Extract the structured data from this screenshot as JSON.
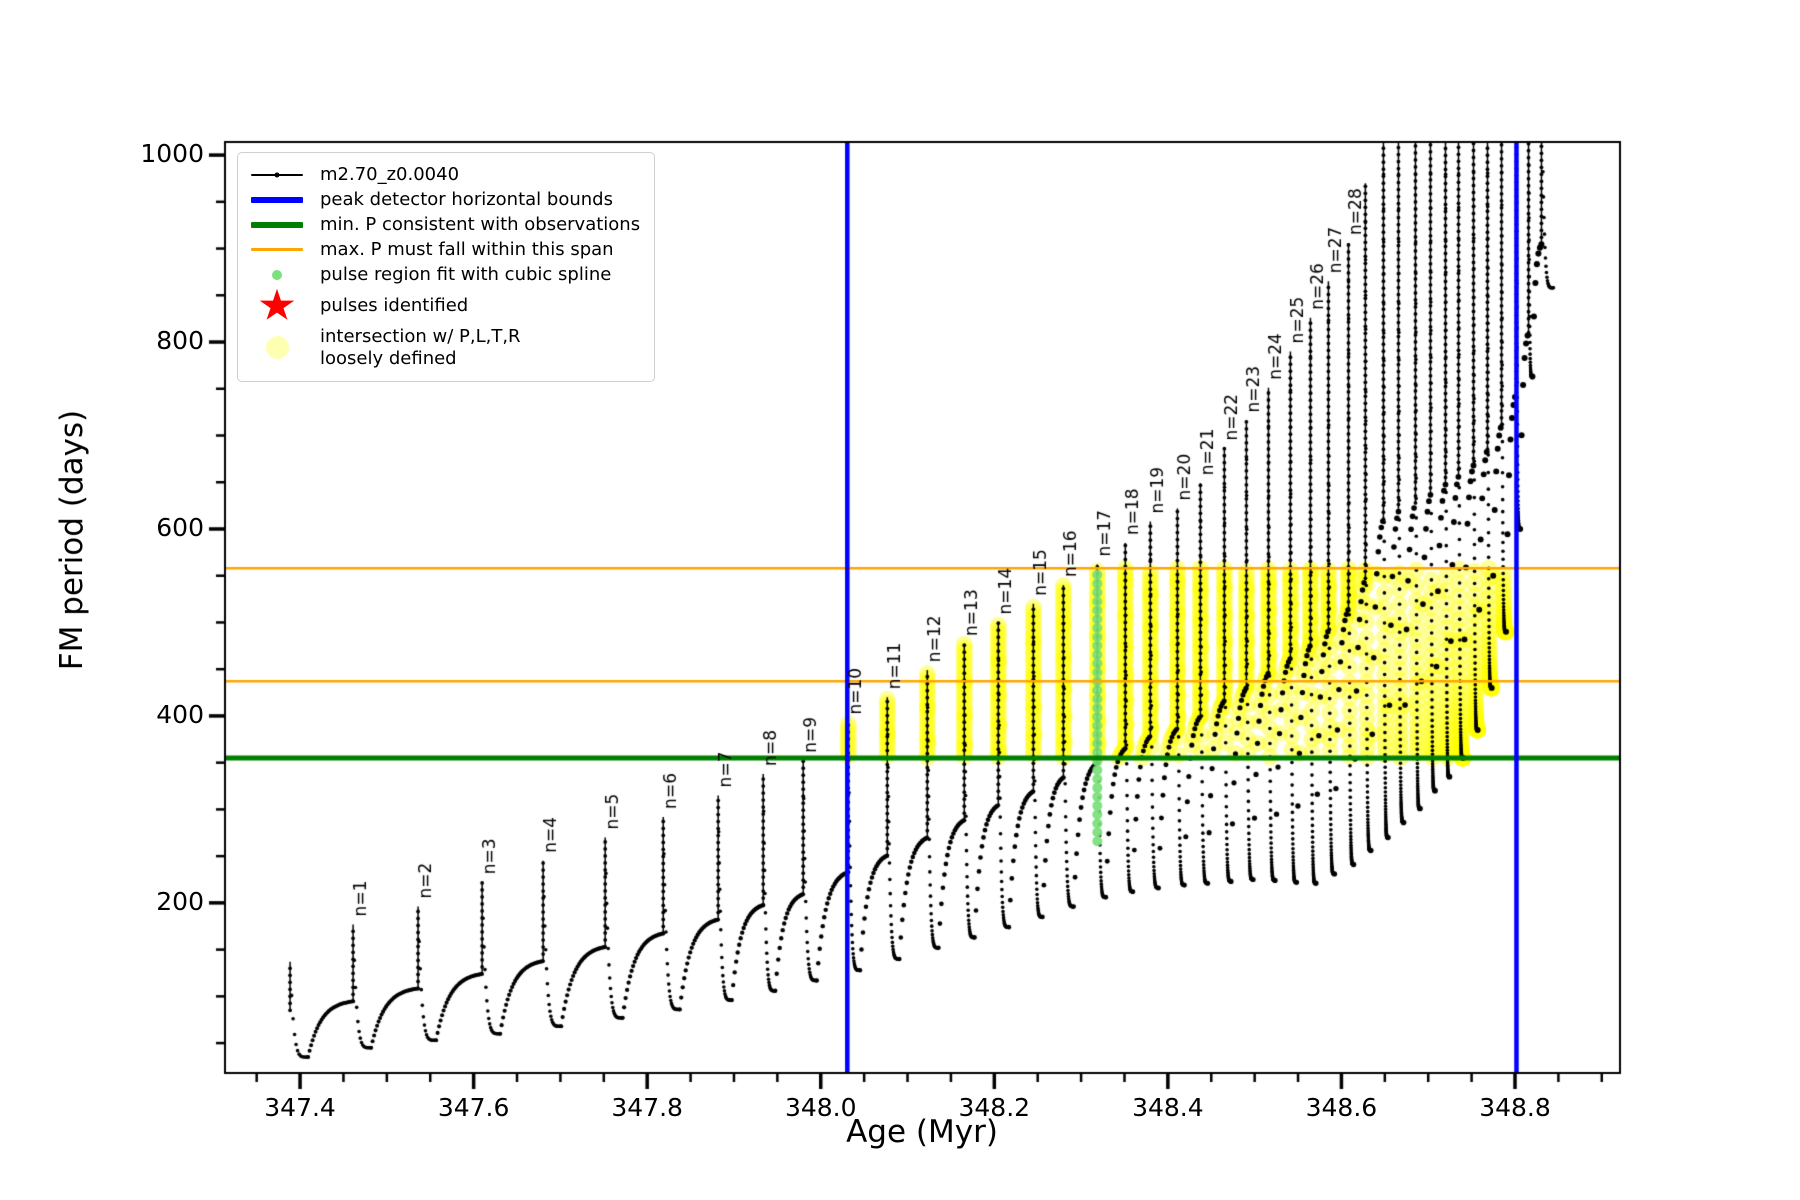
{
  "legend": {
    "entries": [
      {
        "marker": "line-dot",
        "color": "#000000",
        "label": "m2.70_z0.0040"
      },
      {
        "marker": "hline-thick",
        "color": "#0000ff",
        "label": "peak detector horizontal bounds"
      },
      {
        "marker": "hline-thick",
        "color": "#008000",
        "label": "min. P consistent with observations"
      },
      {
        "marker": "hline-thin",
        "color": "#ffa500",
        "label": "max. P must fall within this span"
      },
      {
        "marker": "dot-small",
        "color": "#7ce07c",
        "label": "pulse region fit with cubic spline"
      },
      {
        "marker": "star",
        "color": "#ff0000",
        "label": "pulses identified"
      },
      {
        "marker": "dot-large",
        "color": "rgba(255,255,0,0.30)",
        "label": "intersection w/ P,L,T,R\nloosely defined"
      }
    ]
  },
  "chart_data": {
    "type": "line",
    "title": "",
    "xlabel": "Age (Myr)",
    "ylabel": "FM period (days)",
    "series": [
      {
        "name": "m2.70_z0.0040",
        "color": "#000000"
      }
    ],
    "x_range": [
      347.3135,
      348.921
    ],
    "y_range": [
      18,
      1014
    ],
    "x_major_ticks": [
      347.4,
      347.6,
      347.8,
      348.0,
      348.2,
      348.4,
      348.6,
      348.8
    ],
    "x_tick_labels": [
      "347.4",
      "347.6",
      "347.8",
      "348.0",
      "348.2",
      "348.4",
      "348.6",
      "348.8"
    ],
    "x_minor_step": 0.05,
    "y_major_ticks": [
      200,
      400,
      600,
      800,
      1000
    ],
    "y_tick_labels": [
      "200",
      "400",
      "600",
      "800",
      "1000"
    ],
    "y_minor_step": 50,
    "grid": false,
    "legend_position": "upper left",
    "vlines": {
      "label": "peak detector horizontal bounds",
      "color": "#0000ff",
      "x": [
        348.0306,
        348.8017
      ]
    },
    "hline_min_p": {
      "label": "min. P consistent with observations",
      "color": "#008000",
      "y": 355
    },
    "hlines_max_p_span": {
      "label": "max. P must fall within this span",
      "color": "#ffa500",
      "y": [
        437,
        558
      ]
    },
    "spline_fit_column": {
      "label": "pulse region fit with cubic spline",
      "color": "rgba(120,224,120,0.92)",
      "x": 348.3187,
      "y_min": 266,
      "y_max": 560,
      "step": 9.5
    },
    "intersection_band": {
      "label": "intersection w/ P,L,T,R loosely defined",
      "color": "rgba(255,255,0,0.40)",
      "x_min": 348.0306,
      "x_max": 348.8017,
      "y_min": 355,
      "y_max": 558
    },
    "pulses": {
      "first_shoulder": 85,
      "shoulder_frac": 0.42,
      "clip_top": 1100,
      "spikes": [
        {
          "x": 347.3885,
          "peak": 137,
          "dip_after": 35,
          "label": null
        },
        {
          "x": 347.4611,
          "peak": 177,
          "dip_after": 45,
          "label": "n=1"
        },
        {
          "x": 347.536,
          "peak": 196,
          "dip_after": 53,
          "label": "n=2"
        },
        {
          "x": 347.6098,
          "peak": 222,
          "dip_after": 60,
          "label": "n=3"
        },
        {
          "x": 347.6801,
          "peak": 245,
          "dip_after": 68,
          "label": "n=4"
        },
        {
          "x": 347.7516,
          "peak": 270,
          "dip_after": 77,
          "label": "n=5"
        },
        {
          "x": 347.8185,
          "peak": 292,
          "dip_after": 86,
          "label": "n=6"
        },
        {
          "x": 347.8818,
          "peak": 315,
          "dip_after": 96,
          "label": "n=7"
        },
        {
          "x": 347.9337,
          "peak": 338,
          "dip_after": 106,
          "label": "n=8"
        },
        {
          "x": 347.9798,
          "peak": 352,
          "dip_after": 117,
          "label": "n=9"
        },
        {
          "x": 348.0317,
          "peak": 393,
          "dip_after": 128,
          "label": "n=10"
        },
        {
          "x": 348.0767,
          "peak": 420,
          "dip_after": 140,
          "label": "n=11"
        },
        {
          "x": 348.1228,
          "peak": 449,
          "dip_after": 152,
          "label": "n=12"
        },
        {
          "x": 348.1654,
          "peak": 477,
          "dip_after": 163,
          "label": "n=13"
        },
        {
          "x": 348.2046,
          "peak": 500,
          "dip_after": 174,
          "label": "n=14"
        },
        {
          "x": 348.245,
          "peak": 520,
          "dip_after": 185,
          "label": "n=15"
        },
        {
          "x": 348.2796,
          "peak": 540,
          "dip_after": 196,
          "label": "n=16"
        },
        {
          "x": 348.3187,
          "peak": 562,
          "dip_after": 206,
          "label": "n=17"
        },
        {
          "x": 348.351,
          "peak": 585,
          "dip_after": 212,
          "label": "n=18"
        },
        {
          "x": 348.3798,
          "peak": 608,
          "dip_after": 216,
          "label": "n=19"
        },
        {
          "x": 348.411,
          "peak": 622,
          "dip_after": 219,
          "label": "n=20"
        },
        {
          "x": 348.4375,
          "peak": 649,
          "dip_after": 221,
          "label": "n=21"
        },
        {
          "x": 348.4651,
          "peak": 686,
          "dip_after": 223,
          "label": "n=22"
        },
        {
          "x": 348.4905,
          "peak": 716,
          "dip_after": 225,
          "label": "n=23"
        },
        {
          "x": 348.5159,
          "peak": 751,
          "dip_after": 224,
          "label": "n=24"
        },
        {
          "x": 348.5412,
          "peak": 790,
          "dip_after": 222,
          "label": "n=25"
        },
        {
          "x": 348.5643,
          "peak": 826,
          "dip_after": 221,
          "label": "n=26"
        },
        {
          "x": 348.585,
          "peak": 865,
          "dip_after": 231,
          "label": "n=27"
        },
        {
          "x": 348.6081,
          "peak": 906,
          "dip_after": 241,
          "label": "n=28"
        },
        {
          "x": 348.6276,
          "peak": 970,
          "dip_after": 256,
          "label": null
        },
        {
          "x": 348.6484,
          "peak": 1100,
          "dip_after": 270,
          "label": null
        },
        {
          "x": 348.6657,
          "peak": 1100,
          "dip_after": 286,
          "label": null
        },
        {
          "x": 348.6853,
          "peak": 1100,
          "dip_after": 301,
          "label": null
        },
        {
          "x": 348.7026,
          "peak": 1100,
          "dip_after": 320,
          "label": null
        },
        {
          "x": 348.7199,
          "peak": 1100,
          "dip_after": 335,
          "label": null
        },
        {
          "x": 348.7349,
          "peak": 1100,
          "dip_after": 355,
          "label": null
        },
        {
          "x": 348.7522,
          "peak": 1100,
          "dip_after": 385,
          "label": null
        },
        {
          "x": 348.7683,
          "peak": 1100,
          "dip_after": 430,
          "label": null
        },
        {
          "x": 348.7845,
          "peak": 1100,
          "dip_after": 490,
          "label": null
        },
        {
          "x": 348.8017,
          "peak": 1100,
          "dip_after": 600,
          "label": null
        },
        {
          "x": 348.8156,
          "peak": 1100,
          "dip_after": 763,
          "label": null
        },
        {
          "x": 348.8305,
          "peak": 1100,
          "dip_after": 858,
          "label": null
        }
      ]
    }
  }
}
